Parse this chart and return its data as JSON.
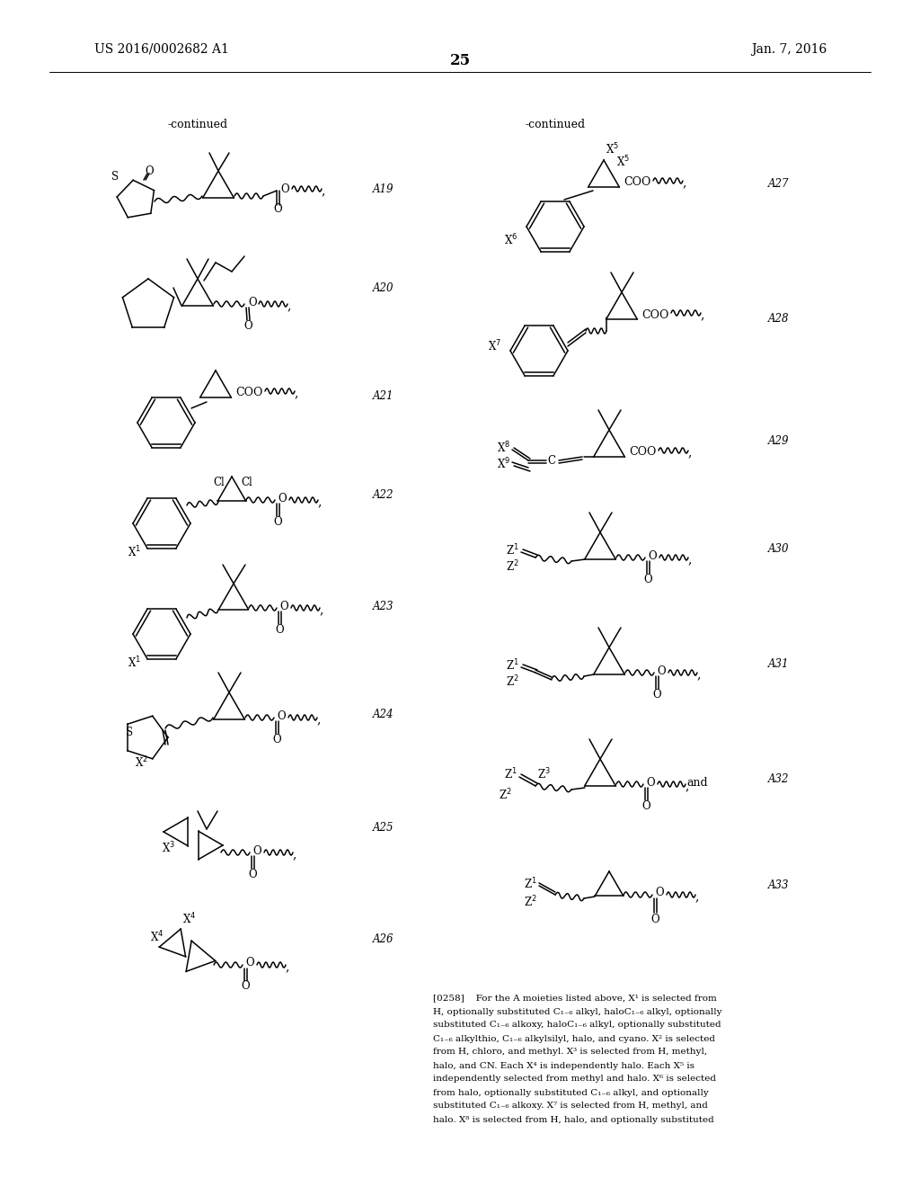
{
  "page_number": "25",
  "patent_number": "US 2016/0002682 A1",
  "patent_date": "Jan. 7, 2016",
  "bg": "#ffffff",
  "tc": "#000000",
  "left_labels": [
    "A19",
    "A20",
    "A21",
    "A22",
    "A23",
    "A24",
    "A25",
    "A26"
  ],
  "right_labels": [
    "A27",
    "A28",
    "A29",
    "A30",
    "A31",
    "A32",
    "A33"
  ],
  "footer": "[0258]    For the A moieties listed above, X1 is selected from H, optionally substituted C1-6 alkyl, haloC1-6 alkyl, optionally substituted C1-6 alkoxy, haloC1-6 alkyl, optionally substituted C1-6 alkylthio, C1-6 alkylsilyl, halo, and cyano. X2 is selected from H, chloro, and methyl. X3 is selected from H, methyl, halo, and CN. Each X4 is independently halo. Each X5 is independently selected from methyl and halo. X6 is selected from halo, optionally substituted C1-6 alkyl, and optionally substituted C1-6 alkoxy. X7 is selected from H, methyl, and halo. X8 is selected from H, halo, and optionally substituted"
}
